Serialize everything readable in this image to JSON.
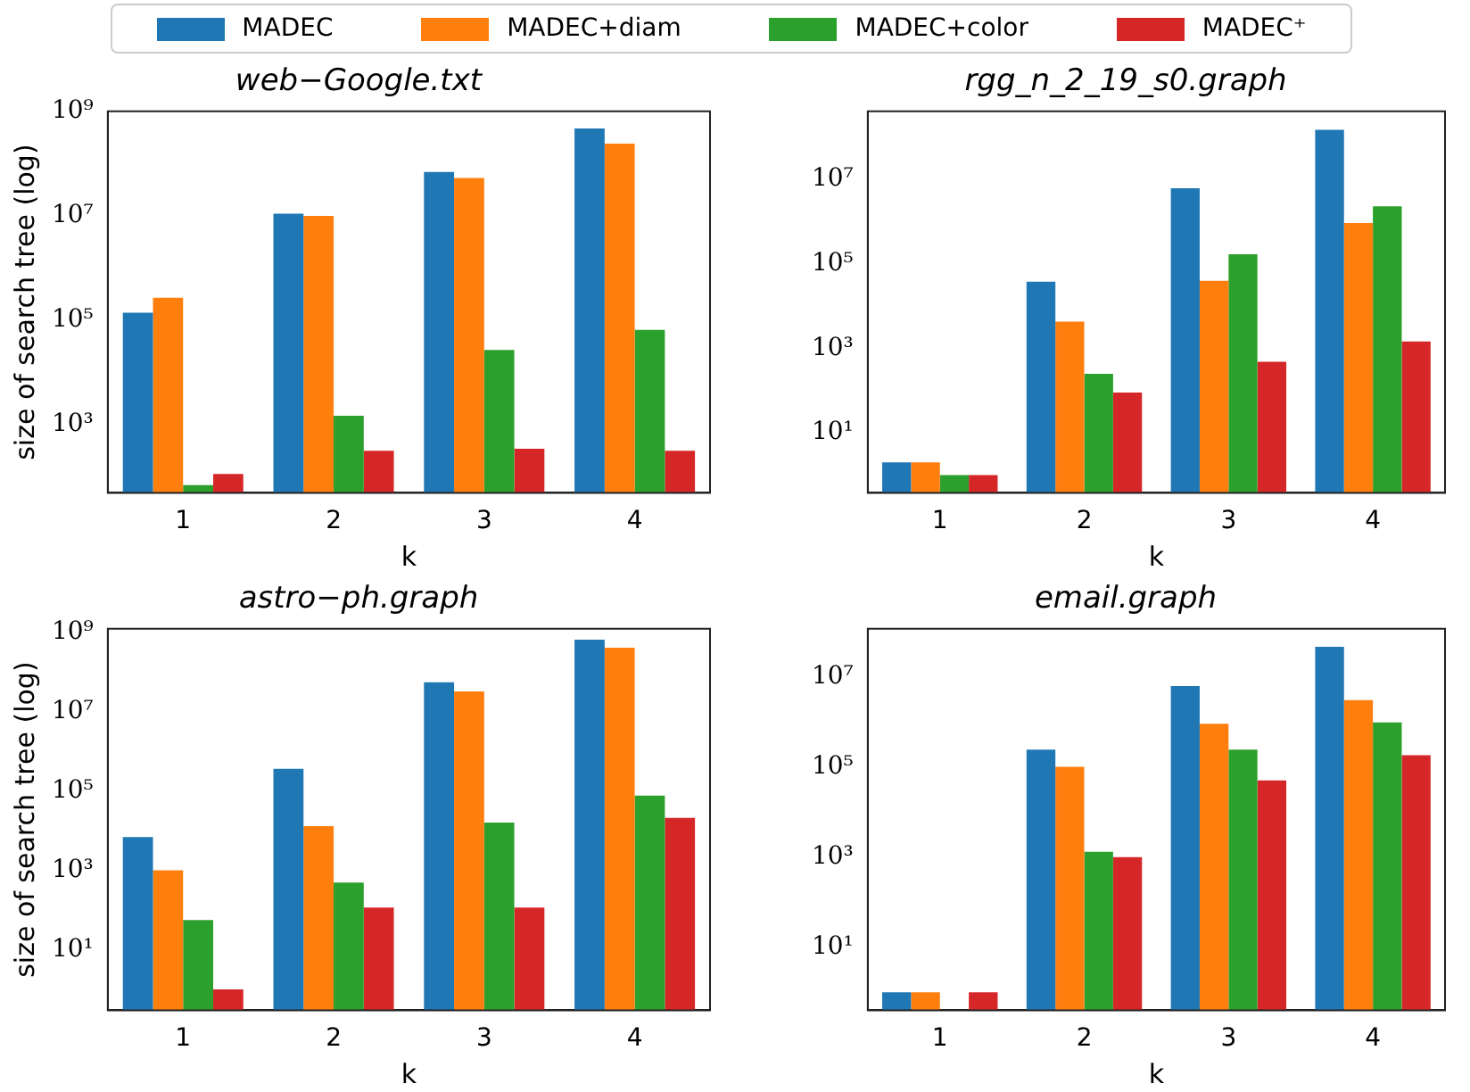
{
  "chart_data": [
    {
      "type": "bar",
      "title": "web−Google.txt",
      "xlabel": "k",
      "ylabel": "size of search tree (log)",
      "categories": [
        "1",
        "2",
        "3",
        "4"
      ],
      "log": true,
      "legend": "top",
      "ylim": [
        50,
        1000000000
      ],
      "yticks": [
        {
          "value": 1000,
          "label": "10³"
        },
        {
          "value": 100000,
          "label": "10⁵"
        },
        {
          "value": 10000000,
          "label": "10⁷"
        },
        {
          "value": 1000000000,
          "label": "10⁹"
        }
      ],
      "series": [
        {
          "name": "MADEC",
          "color": "#1f77b4",
          "values": [
            140000,
            11000000,
            69000000,
            470000000
          ]
        },
        {
          "name": "MADEC+diam",
          "color": "#ff7f0e",
          "values": [
            270000,
            10000000,
            53000000,
            240000000
          ]
        },
        {
          "name": "MADEC+color",
          "color": "#2ca02c",
          "values": [
            70,
            1500,
            27000,
            66000
          ]
        },
        {
          "name": "MADEC⁺",
          "color": "#d62728",
          "values": [
            115,
            320,
            350,
            320
          ]
        }
      ]
    },
    {
      "type": "bar",
      "title": "rgg_n_2_19_s0.graph",
      "xlabel": "k",
      "categories": [
        "1",
        "2",
        "3",
        "4"
      ],
      "log": true,
      "ylim": [
        0.38,
        410000000
      ],
      "yticks": [
        {
          "value": 10,
          "label": "10¹"
        },
        {
          "value": 1000,
          "label": "10³"
        },
        {
          "value": 100000,
          "label": "10⁵"
        },
        {
          "value": 10000000,
          "label": "10⁷"
        }
      ],
      "series": [
        {
          "color": "#1f77b4",
          "values": [
            2,
            38000,
            6200000,
            150000000
          ]
        },
        {
          "color": "#ff7f0e",
          "values": [
            2,
            4300,
            40000,
            930000
          ]
        },
        {
          "color": "#2ca02c",
          "values": [
            1,
            250,
            170000,
            2300000
          ]
        },
        {
          "color": "#d62728",
          "values": [
            1,
            90,
            480,
            1450
          ]
        }
      ]
    },
    {
      "type": "bar",
      "title": "astro−ph.graph",
      "xlabel": "k",
      "ylabel": "size of search tree (log)",
      "categories": [
        "1",
        "2",
        "3",
        "4"
      ],
      "log": true,
      "ylim": [
        0.32,
        1200000000
      ],
      "yticks": [
        {
          "value": 10,
          "label": "10¹"
        },
        {
          "value": 1000,
          "label": "10³"
        },
        {
          "value": 100000,
          "label": "10⁵"
        },
        {
          "value": 10000000,
          "label": "10⁷"
        },
        {
          "value": 1000000000,
          "label": "10⁹"
        }
      ],
      "series": [
        {
          "color": "#1f77b4",
          "values": [
            6900,
            360000,
            54000000,
            640000000
          ]
        },
        {
          "color": "#ff7f0e",
          "values": [
            1000,
            13000,
            32000000,
            400000000
          ]
        },
        {
          "color": "#2ca02c",
          "values": [
            56,
            490,
            16000,
            76000
          ]
        },
        {
          "color": "#d62728",
          "values": [
            1,
            115,
            115,
            21000
          ]
        }
      ]
    },
    {
      "type": "bar",
      "title": "email.graph",
      "xlabel": "k",
      "categories": [
        "1",
        "2",
        "3",
        "4"
      ],
      "log": true,
      "ylim": [
        0.4,
        115000000
      ],
      "yticks": [
        {
          "value": 10,
          "label": "10¹"
        },
        {
          "value": 1000,
          "label": "10³"
        },
        {
          "value": 100000,
          "label": "10⁵"
        },
        {
          "value": 10000000,
          "label": "10⁷"
        }
      ],
      "series": [
        {
          "color": "#1f77b4",
          "values": [
            1,
            240000,
            6200000,
            46000000
          ]
        },
        {
          "color": "#ff7f0e",
          "values": [
            1,
            100000,
            900000,
            3000000
          ]
        },
        {
          "color": "#2ca02c",
          "values": [
            null,
            1300,
            240000,
            960000
          ]
        },
        {
          "color": "#d62728",
          "values": [
            1,
            1000,
            50000,
            180000
          ]
        }
      ]
    }
  ]
}
